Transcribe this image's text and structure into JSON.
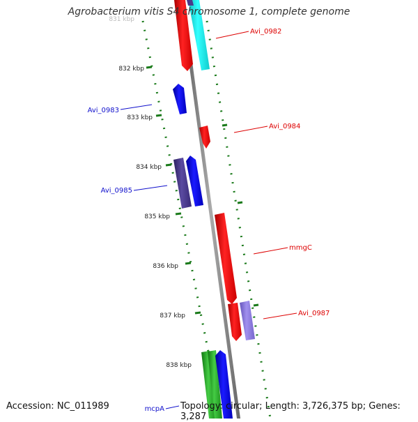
{
  "title": "Agrobacterium vitis S4 chromosome 1, complete genome",
  "footer": {
    "accession": "Accession: NC_011989",
    "summary": "Topology: circular; Length: 3,726,375 bp; Genes: 3,287"
  },
  "ruler": {
    "ticks": [
      {
        "label": "831 kbp",
        "faded": true
      },
      {
        "label": "832 kbp"
      },
      {
        "label": "833 kbp"
      },
      {
        "label": "834 kbp"
      },
      {
        "label": "835 kbp"
      },
      {
        "label": "836 kbp"
      },
      {
        "label": "837 kbp"
      },
      {
        "label": "838 kbp"
      }
    ]
  },
  "colors": {
    "red": "#ee1111",
    "cyan": "#22eeee",
    "blue": "#1010dd",
    "navy_purple": "#4a3a8a",
    "lavender": "#8877dd",
    "green": "#22aa22",
    "tick_green": "#1a7a1a",
    "backbone": "#888888",
    "label_red": "#dd0000",
    "label_blue": "#1010cc"
  },
  "gene_labels": [
    {
      "text": "Avi_0982",
      "color": "label_red"
    },
    {
      "text": "Avi_0983",
      "color": "label_blue"
    },
    {
      "text": "Avi_0984",
      "color": "label_red"
    },
    {
      "text": "Avi_0985",
      "color": "label_blue"
    },
    {
      "text": "mmgC",
      "color": "label_red"
    },
    {
      "text": "Avi_0987",
      "color": "label_red"
    },
    {
      "text": "mcpA",
      "color": "label_blue"
    }
  ]
}
